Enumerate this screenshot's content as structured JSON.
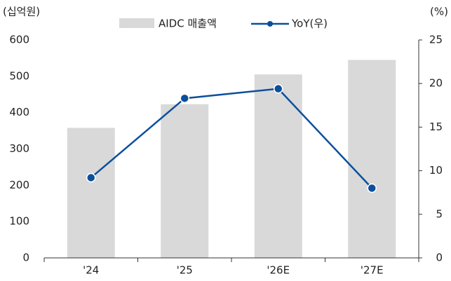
{
  "chart_data": {
    "type": "bar",
    "y_label": "(십억원)",
    "y2_label": "(%)",
    "categories": [
      "'24",
      "'25",
      "'26E",
      "'27E"
    ],
    "series": [
      {
        "name": "AIDC 매출액",
        "type": "bar",
        "color": "#d9d9d9",
        "values": [
          358,
          423,
          505,
          545
        ]
      },
      {
        "name": "YoY(우)",
        "type": "line",
        "axis": "y2",
        "color": "#0b4f9c",
        "values": [
          9.2,
          18.3,
          19.4,
          8.0
        ]
      }
    ],
    "ylim": [
      0,
      600
    ],
    "yticks": [
      0,
      100,
      200,
      300,
      400,
      500,
      600
    ],
    "y2lim": [
      0,
      25
    ],
    "y2ticks": [
      0,
      5,
      10,
      15,
      20,
      25
    ],
    "legend": "top"
  }
}
